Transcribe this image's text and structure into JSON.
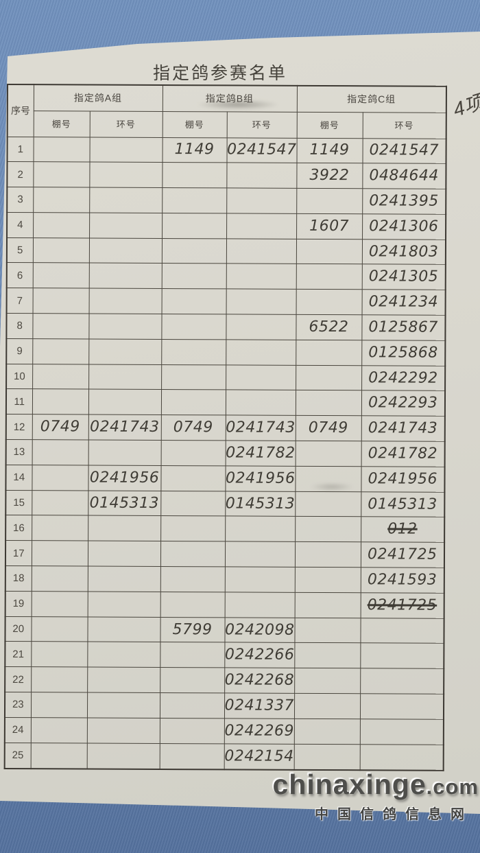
{
  "photo": {
    "title": "指定鸽参赛名单",
    "corner_note": "4项",
    "watermark": {
      "domain_name": "chinaxinge",
      "domain_tld": ".com",
      "site_name": "中国信鸽信息网"
    }
  },
  "table": {
    "serial_header": "序号",
    "group_headers": [
      "指定鸽A组",
      "指定鸽B组",
      "指定鸽C组"
    ],
    "loft_label": "棚号",
    "ring_label": "环号",
    "rows": [
      {
        "no": "1",
        "a_loft": "",
        "a_ring": "",
        "b_loft": "1149",
        "b_ring": "0241547",
        "c_loft": "1149",
        "c_ring": "0241547"
      },
      {
        "no": "2",
        "a_loft": "",
        "a_ring": "",
        "b_loft": "",
        "b_ring": "",
        "c_loft": "3922",
        "c_ring": "0484644"
      },
      {
        "no": "3",
        "a_loft": "",
        "a_ring": "",
        "b_loft": "",
        "b_ring": "",
        "c_loft": "",
        "c_ring": "0241395"
      },
      {
        "no": "4",
        "a_loft": "",
        "a_ring": "",
        "b_loft": "",
        "b_ring": "",
        "c_loft": "1607",
        "c_ring": "0241306"
      },
      {
        "no": "5",
        "a_loft": "",
        "a_ring": "",
        "b_loft": "",
        "b_ring": "",
        "c_loft": "",
        "c_ring": "0241803"
      },
      {
        "no": "6",
        "a_loft": "",
        "a_ring": "",
        "b_loft": "",
        "b_ring": "",
        "c_loft": "",
        "c_ring": "0241305"
      },
      {
        "no": "7",
        "a_loft": "",
        "a_ring": "",
        "b_loft": "",
        "b_ring": "",
        "c_loft": "",
        "c_ring": "0241234"
      },
      {
        "no": "8",
        "a_loft": "",
        "a_ring": "",
        "b_loft": "",
        "b_ring": "",
        "c_loft": "6522",
        "c_ring": "0125867"
      },
      {
        "no": "9",
        "a_loft": "",
        "a_ring": "",
        "b_loft": "",
        "b_ring": "",
        "c_loft": "",
        "c_ring": "0125868"
      },
      {
        "no": "10",
        "a_loft": "",
        "a_ring": "",
        "b_loft": "",
        "b_ring": "",
        "c_loft": "",
        "c_ring": "0242292"
      },
      {
        "no": "11",
        "a_loft": "",
        "a_ring": "",
        "b_loft": "",
        "b_ring": "",
        "c_loft": "",
        "c_ring": "0242293"
      },
      {
        "no": "12",
        "a_loft": "0749",
        "a_ring": "0241743",
        "b_loft": "0749",
        "b_ring": "0241743",
        "c_loft": "0749",
        "c_ring": "0241743"
      },
      {
        "no": "13",
        "a_loft": "",
        "a_ring": "",
        "b_loft": "",
        "b_ring": "0241782",
        "c_loft": "",
        "c_ring": "0241782"
      },
      {
        "no": "14",
        "a_loft": "",
        "a_ring": "0241956",
        "b_loft": "",
        "b_ring": "0241956",
        "c_loft": "",
        "c_ring": "0241956"
      },
      {
        "no": "15",
        "a_loft": "",
        "a_ring": "0145313",
        "b_loft": "",
        "b_ring": "0145313",
        "c_loft": "",
        "c_ring": "0145313"
      },
      {
        "no": "16",
        "a_loft": "",
        "a_ring": "",
        "b_loft": "",
        "b_ring": "",
        "c_loft": "",
        "c_ring": "012",
        "c_ring_struck": true
      },
      {
        "no": "17",
        "a_loft": "",
        "a_ring": "",
        "b_loft": "",
        "b_ring": "",
        "c_loft": "",
        "c_ring": "0241725"
      },
      {
        "no": "18",
        "a_loft": "",
        "a_ring": "",
        "b_loft": "",
        "b_ring": "",
        "c_loft": "",
        "c_ring": "0241593"
      },
      {
        "no": "19",
        "a_loft": "",
        "a_ring": "",
        "b_loft": "",
        "b_ring": "",
        "c_loft": "",
        "c_ring": "0241725",
        "c_ring_struck": true
      },
      {
        "no": "20",
        "a_loft": "",
        "a_ring": "",
        "b_loft": "5799",
        "b_ring": "0242098",
        "c_loft": "",
        "c_ring": ""
      },
      {
        "no": "21",
        "a_loft": "",
        "a_ring": "",
        "b_loft": "",
        "b_ring": "0242266",
        "c_loft": "",
        "c_ring": ""
      },
      {
        "no": "22",
        "a_loft": "",
        "a_ring": "",
        "b_loft": "",
        "b_ring": "0242268",
        "c_loft": "",
        "c_ring": ""
      },
      {
        "no": "23",
        "a_loft": "",
        "a_ring": "",
        "b_loft": "",
        "b_ring": "0241337",
        "c_loft": "",
        "c_ring": ""
      },
      {
        "no": "24",
        "a_loft": "",
        "a_ring": "",
        "b_loft": "",
        "b_ring": "0242269",
        "c_loft": "",
        "c_ring": ""
      },
      {
        "no": "25",
        "a_loft": "",
        "a_ring": "",
        "b_loft": "",
        "b_ring": "0242154",
        "c_loft": "",
        "c_ring": ""
      }
    ]
  },
  "colors": {
    "fabric_blue_top": "#7191bd",
    "fabric_blue_bottom": "#54719d",
    "paper": "#d9d7ce",
    "table_line": "#49453d",
    "pen_ink": "#3f3c35",
    "watermark_gray": "#4e4e4b"
  }
}
